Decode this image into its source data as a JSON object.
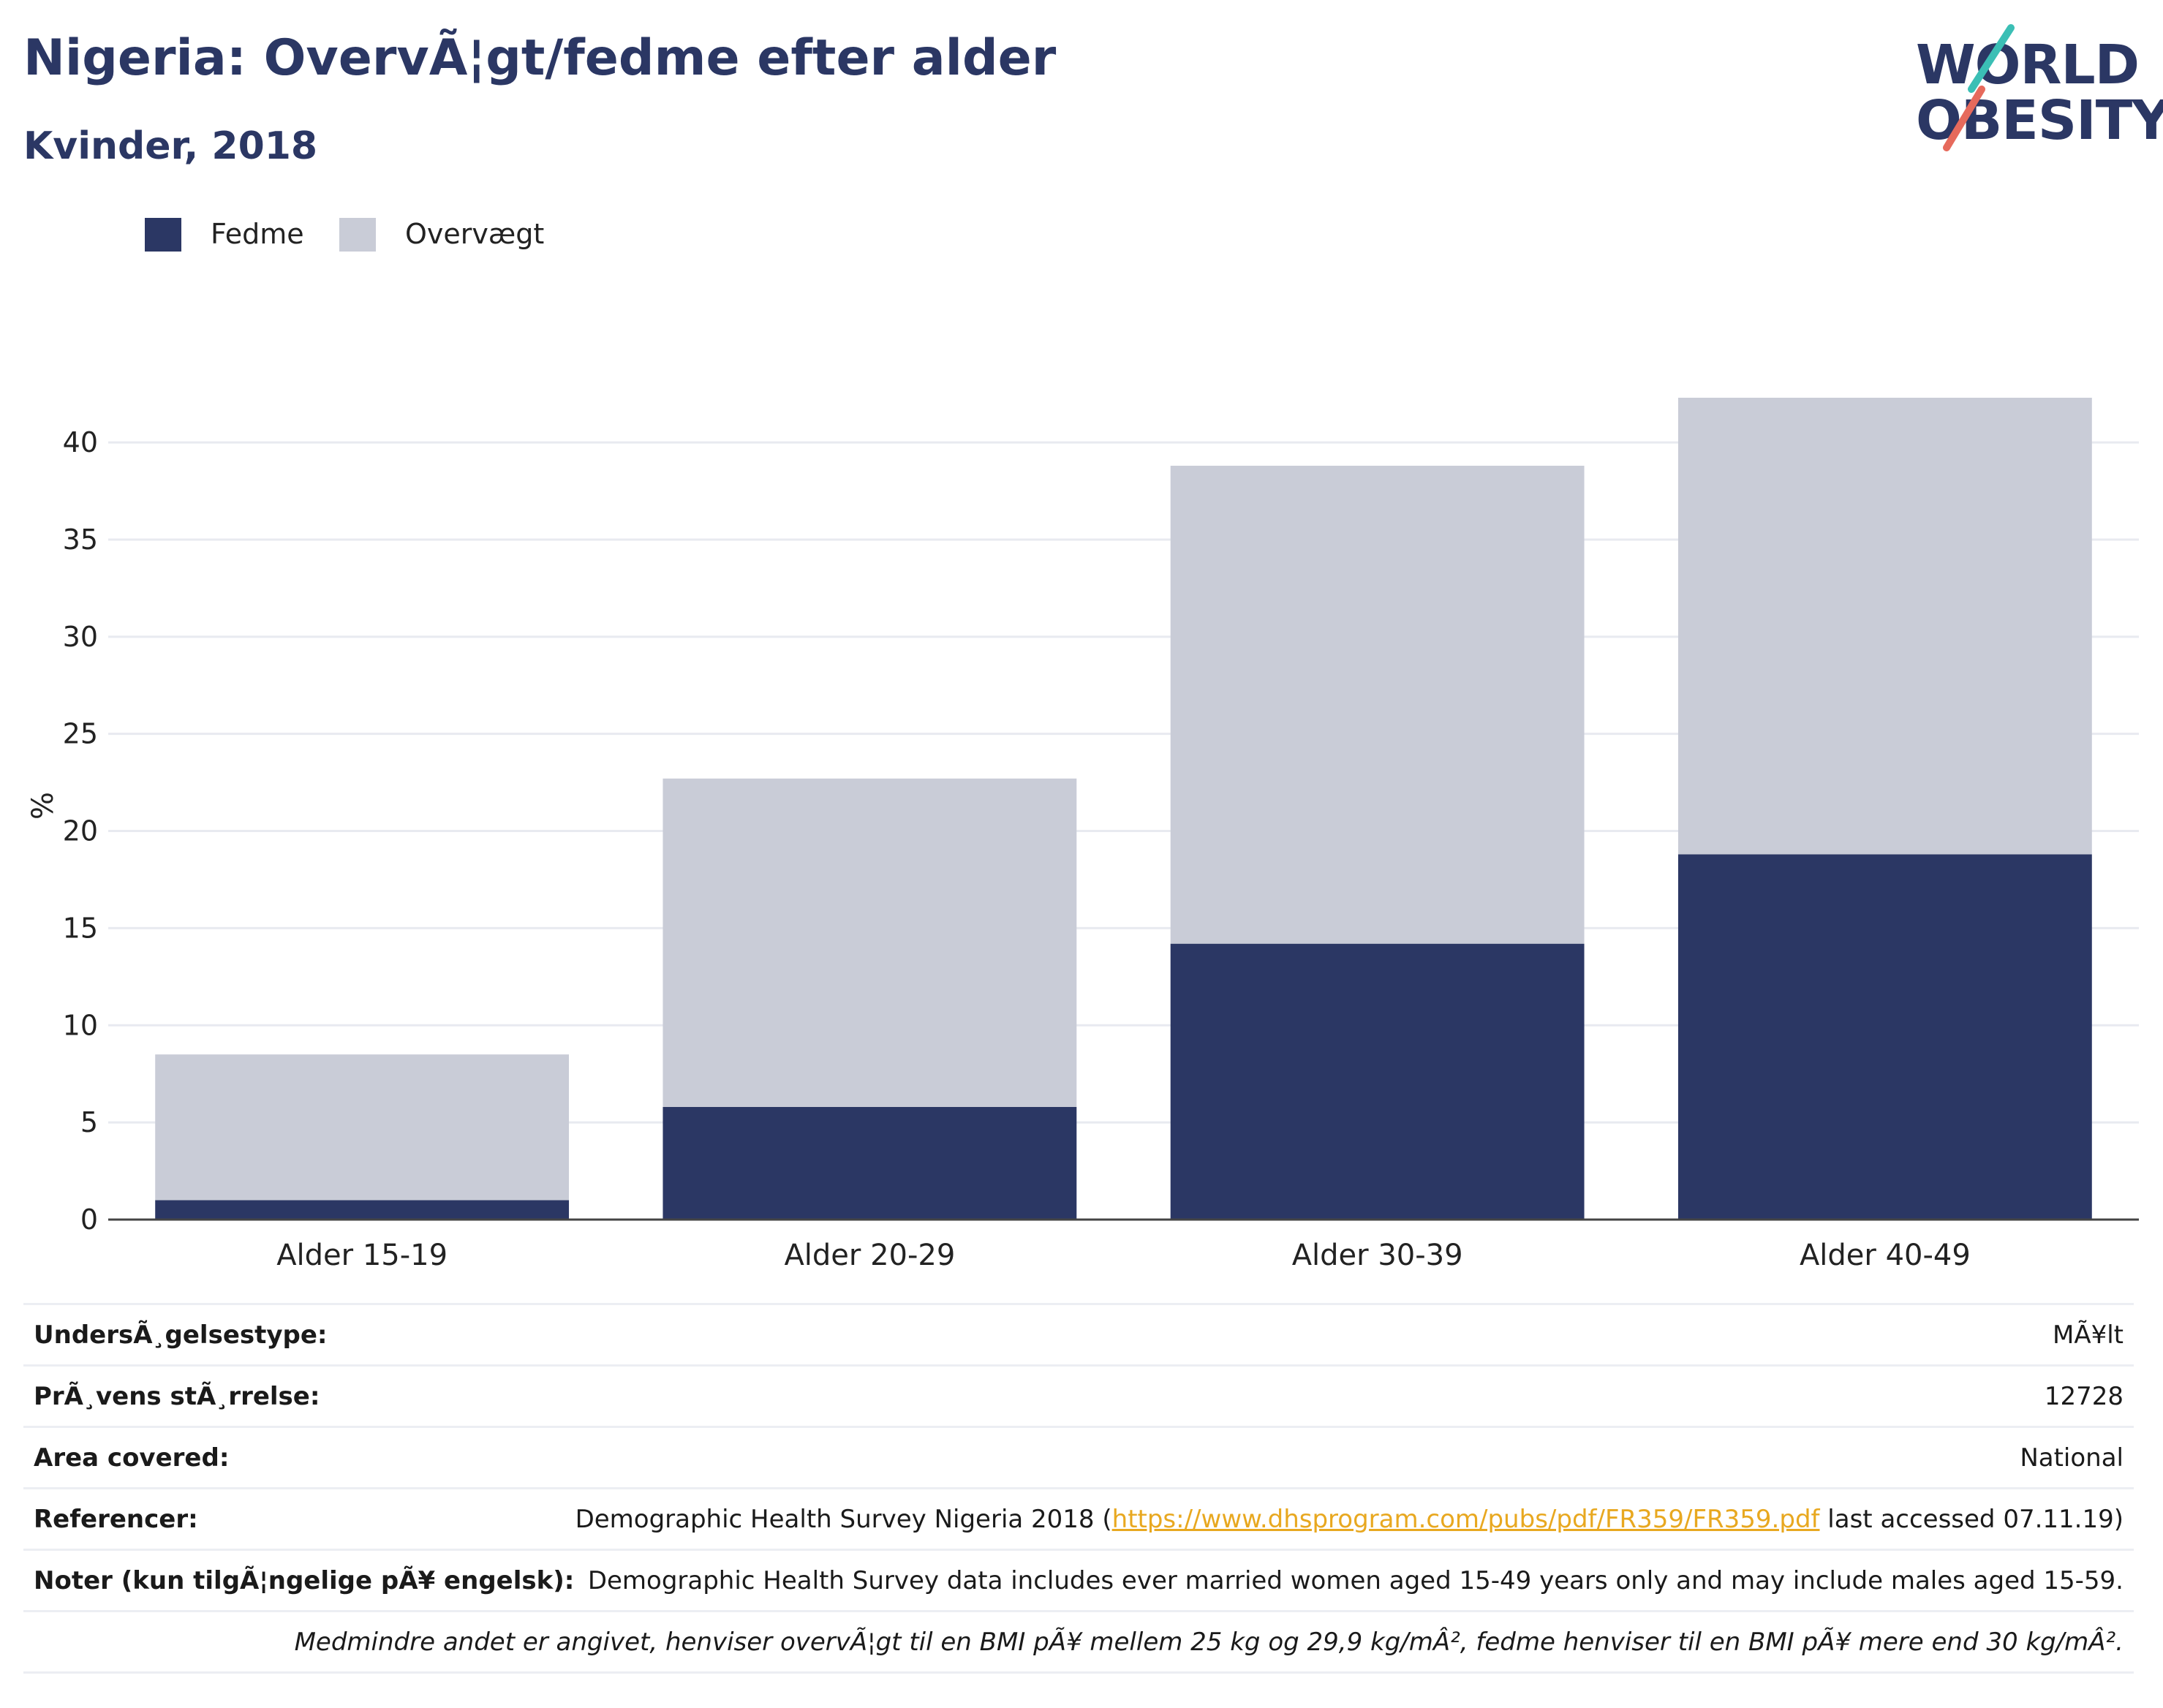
{
  "header": {
    "title": "Nigeria: OvervÃ¦gt/fedme efter alder",
    "subtitle": "Kvinder, 2018"
  },
  "logo": {
    "line1": "WORLD",
    "line2": "OBESITY"
  },
  "legend": [
    {
      "label": "Fedme",
      "color": "#2b3764"
    },
    {
      "label": "Overvægt",
      "color": "#c9ccd7"
    }
  ],
  "chart_data": {
    "type": "bar",
    "stacked": true,
    "categories": [
      "Alder 15-19",
      "Alder 20-29",
      "Alder 30-39",
      "Alder 40-49"
    ],
    "series": [
      {
        "name": "Fedme",
        "values": [
          1.0,
          5.8,
          14.2,
          18.8
        ],
        "color": "#2b3764"
      },
      {
        "name": "Overvægt",
        "values": [
          7.5,
          16.9,
          24.6,
          23.5
        ],
        "color": "#c9ccd7"
      }
    ],
    "ylabel": "%",
    "ylim": [
      0,
      42.6
    ],
    "yticks": [
      0,
      5,
      10,
      15,
      20,
      25,
      30,
      35,
      40
    ],
    "grid": true
  },
  "info": {
    "survey_type_label": "UndersÃ¸gelsestype:",
    "survey_type_value": "MÃ¥lt",
    "sample_size_label": "PrÃ¸vens stÃ¸rrelse:",
    "sample_size_value": "12728",
    "area_label": "Area covered:",
    "area_value": "National",
    "references_label": "Referencer:",
    "references_prefix": "Demographic Health Survey Nigeria 2018 (",
    "references_link": "https://www.dhsprogram.com/pubs/pdf/FR359/FR359.pdf",
    "references_suffix": " last accessed 07.11.19)",
    "notes_label": "Noter (kun tilgÃ¦ngelige pÃ¥ engelsk):",
    "notes_value": "Demographic Health Survey data includes ever married women aged 15-49 years only and may include males aged 15-59.",
    "footnote": "Medmindre andet er angivet, henviser overvÃ¦gt til en BMI pÃ¥ mellem 25 kg og 29,9 kg/mÂ², fedme henviser til en BMI pÃ¥ mere end 30 kg/mÂ²."
  }
}
